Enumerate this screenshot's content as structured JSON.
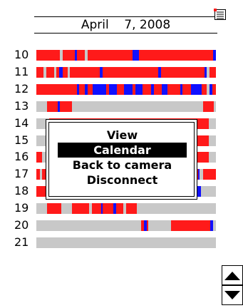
{
  "header": {
    "date": "April    7, 2008",
    "menu_icon": "list-menu-icon"
  },
  "colors": {
    "recording": "#ff1a1a",
    "event": "#1010ff",
    "empty": "#c8c8c8"
  },
  "timeline": {
    "rows": [
      {
        "hour": "10",
        "segments": [
          [
            "r",
            0,
            0.132
          ],
          [
            "r",
            0.148,
            0.213
          ],
          [
            "b",
            0.213,
            0.226
          ],
          [
            "r",
            0.226,
            0.271
          ],
          [
            "r",
            0.285,
            0.537
          ],
          [
            "b",
            0.537,
            0.57
          ],
          [
            "r",
            0.57,
            0.985
          ],
          [
            "b",
            0.985,
            1
          ]
        ]
      },
      {
        "hour": "11",
        "segments": [
          [
            "r",
            0,
            0.04
          ],
          [
            "r",
            0.055,
            0.1
          ],
          [
            "r",
            0.113,
            0.127
          ],
          [
            "b",
            0.127,
            0.148
          ],
          [
            "r",
            0.148,
            0.176
          ],
          [
            "r",
            0.185,
            0.353
          ],
          [
            "b",
            0.353,
            0.368
          ],
          [
            "r",
            0.368,
            0.678
          ],
          [
            "b",
            0.678,
            0.693
          ],
          [
            "r",
            0.693,
            0.935
          ],
          [
            "b",
            0.935,
            0.95
          ],
          [
            "r",
            0.963,
            1
          ]
        ]
      },
      {
        "hour": "12",
        "segments": [
          [
            "r",
            0,
            0.226
          ],
          [
            "b",
            0.226,
            0.24
          ],
          [
            "r",
            0.24,
            0.27
          ],
          [
            "b",
            0.27,
            0.286
          ],
          [
            "r",
            0.286,
            0.315
          ],
          [
            "b",
            0.315,
            0.39
          ],
          [
            "r",
            0.39,
            0.405
          ],
          [
            "b",
            0.405,
            0.45
          ],
          [
            "r",
            0.45,
            0.49
          ],
          [
            "b",
            0.49,
            0.535
          ],
          [
            "r",
            0.535,
            0.55
          ],
          [
            "b",
            0.55,
            0.59
          ],
          [
            "r",
            0.59,
            0.64
          ],
          [
            "b",
            0.64,
            0.655
          ],
          [
            "r",
            0.655,
            0.7
          ],
          [
            "b",
            0.7,
            0.73
          ],
          [
            "r",
            0.73,
            0.8
          ],
          [
            "b",
            0.8,
            0.815
          ],
          [
            "r",
            0.815,
            0.86
          ],
          [
            "b",
            0.86,
            0.92
          ],
          [
            "r",
            0.92,
            0.95
          ],
          [
            "b",
            0.965,
            0.98
          ],
          [
            "r",
            0.98,
            1
          ]
        ]
      },
      {
        "hour": "13",
        "segments": [
          [
            "r",
            0.06,
            0.12
          ],
          [
            "b",
            0.12,
            0.13
          ],
          [
            "r",
            0.13,
            0.2
          ],
          [
            "r",
            0.93,
            0.99
          ]
        ]
      },
      {
        "hour": "14",
        "segments": [
          [
            "r",
            0.07,
            0.96
          ]
        ]
      },
      {
        "hour": "15",
        "segments": [
          [
            "r",
            0.07,
            0.96
          ]
        ]
      },
      {
        "hour": "16",
        "segments": [
          [
            "r",
            0,
            0.03
          ],
          [
            "r",
            0.07,
            0.96
          ]
        ]
      },
      {
        "hour": "17",
        "segments": [
          [
            "r",
            0,
            0.018
          ],
          [
            "r",
            0.03,
            0.06
          ],
          [
            "r",
            0.075,
            0.1
          ],
          [
            "b",
            0.1,
            0.11
          ],
          [
            "r",
            0.12,
            0.15
          ],
          [
            "b",
            0.15,
            0.165
          ],
          [
            "r",
            0.175,
            0.225
          ],
          [
            "r",
            0.24,
            0.585
          ],
          [
            "b",
            0.585,
            0.6
          ],
          [
            "r",
            0.6,
            0.9
          ],
          [
            "b",
            0.9,
            0.91
          ],
          [
            "r",
            0.93,
            1
          ]
        ]
      },
      {
        "hour": "18",
        "segments": [
          [
            "r",
            0,
            0.35
          ],
          [
            "r",
            0.4,
            0.86
          ],
          [
            "b",
            0.895,
            0.915
          ],
          [
            "r",
            0.875,
            0.895
          ]
        ]
      },
      {
        "hour": "19",
        "segments": [
          [
            "r",
            0.06,
            0.14
          ],
          [
            "r",
            0.2,
            0.295
          ],
          [
            "r",
            0.308,
            0.36
          ],
          [
            "b",
            0.36,
            0.37
          ],
          [
            "r",
            0.37,
            0.43
          ],
          [
            "b",
            0.43,
            0.445
          ],
          [
            "r",
            0.445,
            0.485
          ],
          [
            "r",
            0.5,
            0.56
          ]
        ]
      },
      {
        "hour": "20",
        "segments": [
          [
            "r",
            0.585,
            0.6
          ],
          [
            "b",
            0.6,
            0.615
          ],
          [
            "r",
            0.615,
            0.625
          ],
          [
            "r",
            0.75,
            0.97
          ],
          [
            "b",
            0.97,
            0.985
          ]
        ]
      },
      {
        "hour": "21",
        "segments": []
      }
    ]
  },
  "context_menu": {
    "items": [
      {
        "label": "View",
        "selected": false
      },
      {
        "label": "Calendar",
        "selected": true
      },
      {
        "label": "Back to camera",
        "selected": false
      },
      {
        "label": "Disconnect",
        "selected": false
      }
    ]
  },
  "scroll_controls": {
    "up_icon": "triangle-up-icon",
    "down_icon": "triangle-down-icon"
  }
}
